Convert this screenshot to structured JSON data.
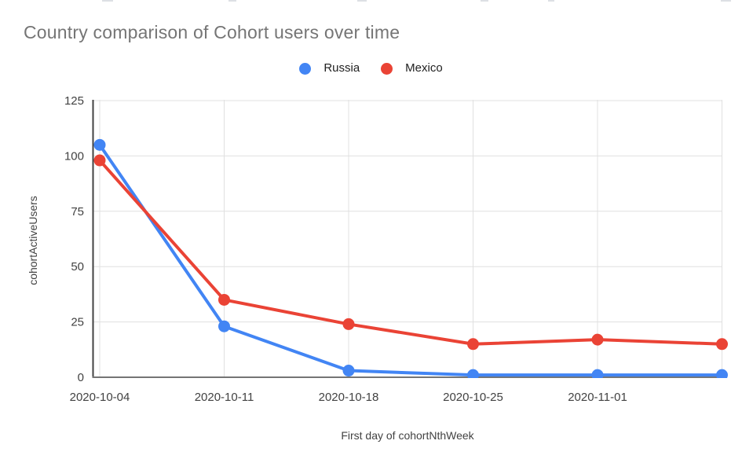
{
  "chart_data": {
    "type": "line",
    "title": "Country comparison of Cohort users over time",
    "xlabel": "First day of cohortNthWeek",
    "ylabel": "cohortActiveUsers",
    "categories": [
      "2020-10-04",
      "2020-10-11",
      "2020-10-18",
      "2020-10-25",
      "2020-11-01",
      ""
    ],
    "series": [
      {
        "name": "Russia",
        "color": "#4285F4",
        "values": [
          105,
          23,
          3,
          1,
          1,
          1
        ]
      },
      {
        "name": "Mexico",
        "color": "#EA4335",
        "values": [
          98,
          35,
          24,
          15,
          17,
          15
        ]
      }
    ],
    "ylim": [
      0,
      125
    ],
    "yticks": [
      0,
      25,
      50,
      75,
      100,
      125
    ],
    "grid": true,
    "legend_position": "top",
    "marker": "circle",
    "line_width": 4,
    "marker_radius": 7.5
  },
  "colors": {
    "background": "#ffffff",
    "title_text": "#757575",
    "axis_text": "#424242",
    "legend_text": "#212121",
    "gridline": "#e0e0e0",
    "y_axis_line": "#424242",
    "x_axis_line": "#757575",
    "series_russia": "#4285F4",
    "series_mexico": "#EA4335"
  }
}
